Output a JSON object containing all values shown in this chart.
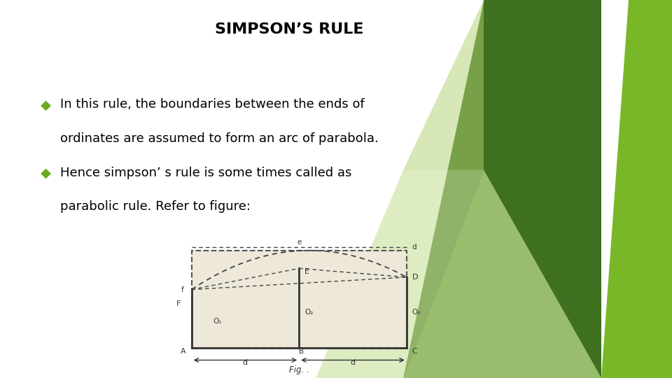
{
  "title": "SIMPSON’S RULE",
  "title_fontsize": 16,
  "bullet_color": "#6aaa1e",
  "bullet1_line1": "In this rule, the boundaries between the ends of",
  "bullet1_line2": "  ordinates are assumed to form an arc of parabola.",
  "bullet2_line1": "Hence simpson’ s rule is some times called as",
  "bullet2_line2": "  parabolic rule. Refer to figure:",
  "text_fontsize": 13,
  "background_color": "#ffffff",
  "fig_caption": "Fig. .",
  "fig_bg": "#ede8d8"
}
